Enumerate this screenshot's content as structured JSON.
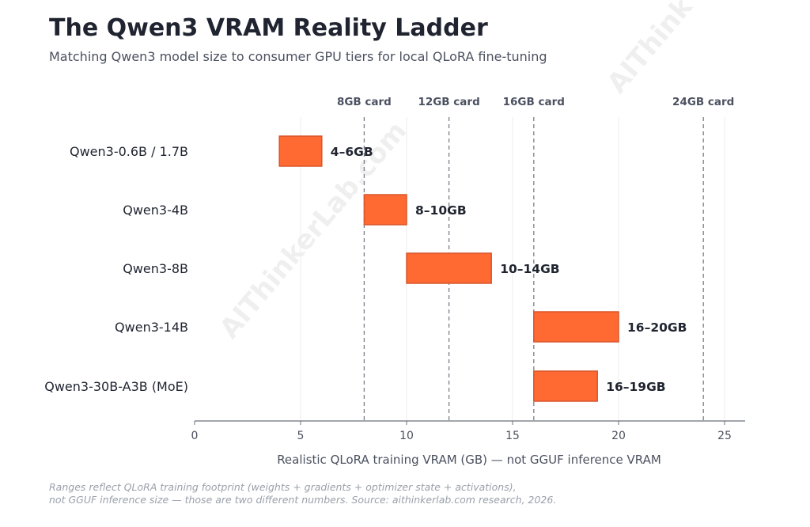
{
  "title": "The Qwen3 VRAM Reality Ladder",
  "subtitle": "Matching Qwen3 model size to consumer GPU tiers for local QLoRA fine-tuning",
  "footnote": [
    "Ranges reflect QLoRA training footprint (weights + gradients + optimizer state + activations),",
    "not GGUF inference size — those are two different numbers.  Source: aithinkerlab.com research, 2026."
  ],
  "watermark": "AIThinkerLab.com",
  "watermark_short": "AIThink",
  "colors": {
    "bar_fill": "#ff6a33",
    "bar_stroke": "#d9552a",
    "reference_line": "#7a7f88",
    "grid": "#ececee",
    "axis": "#6b7079",
    "text_dark": "#1f2430"
  },
  "chart_data": {
    "type": "bar",
    "orientation": "horizontal-range",
    "xlabel": "Realistic QLoRA training VRAM (GB) — not GGUF inference VRAM",
    "ylabel": "",
    "xlim": [
      0,
      26
    ],
    "xticks": [
      0,
      5,
      10,
      15,
      20,
      25
    ],
    "grid": "vertical",
    "categories": [
      "Qwen3-0.6B / 1.7B",
      "Qwen3-4B",
      "Qwen3-8B",
      "Qwen3-14B",
      "Qwen3-30B-A3B (MoE)"
    ],
    "ranges": [
      [
        4,
        6
      ],
      [
        8,
        10
      ],
      [
        10,
        14
      ],
      [
        16,
        20
      ],
      [
        16,
        19
      ]
    ],
    "data_labels": [
      "4–6GB",
      "8–10GB",
      "10–14GB",
      "16–20GB",
      "16–19GB"
    ],
    "reference_lines": [
      {
        "x": 8,
        "label": "8GB card"
      },
      {
        "x": 12,
        "label": "12GB card"
      },
      {
        "x": 16,
        "label": "16GB card"
      },
      {
        "x": 24,
        "label": "24GB card"
      }
    ]
  }
}
